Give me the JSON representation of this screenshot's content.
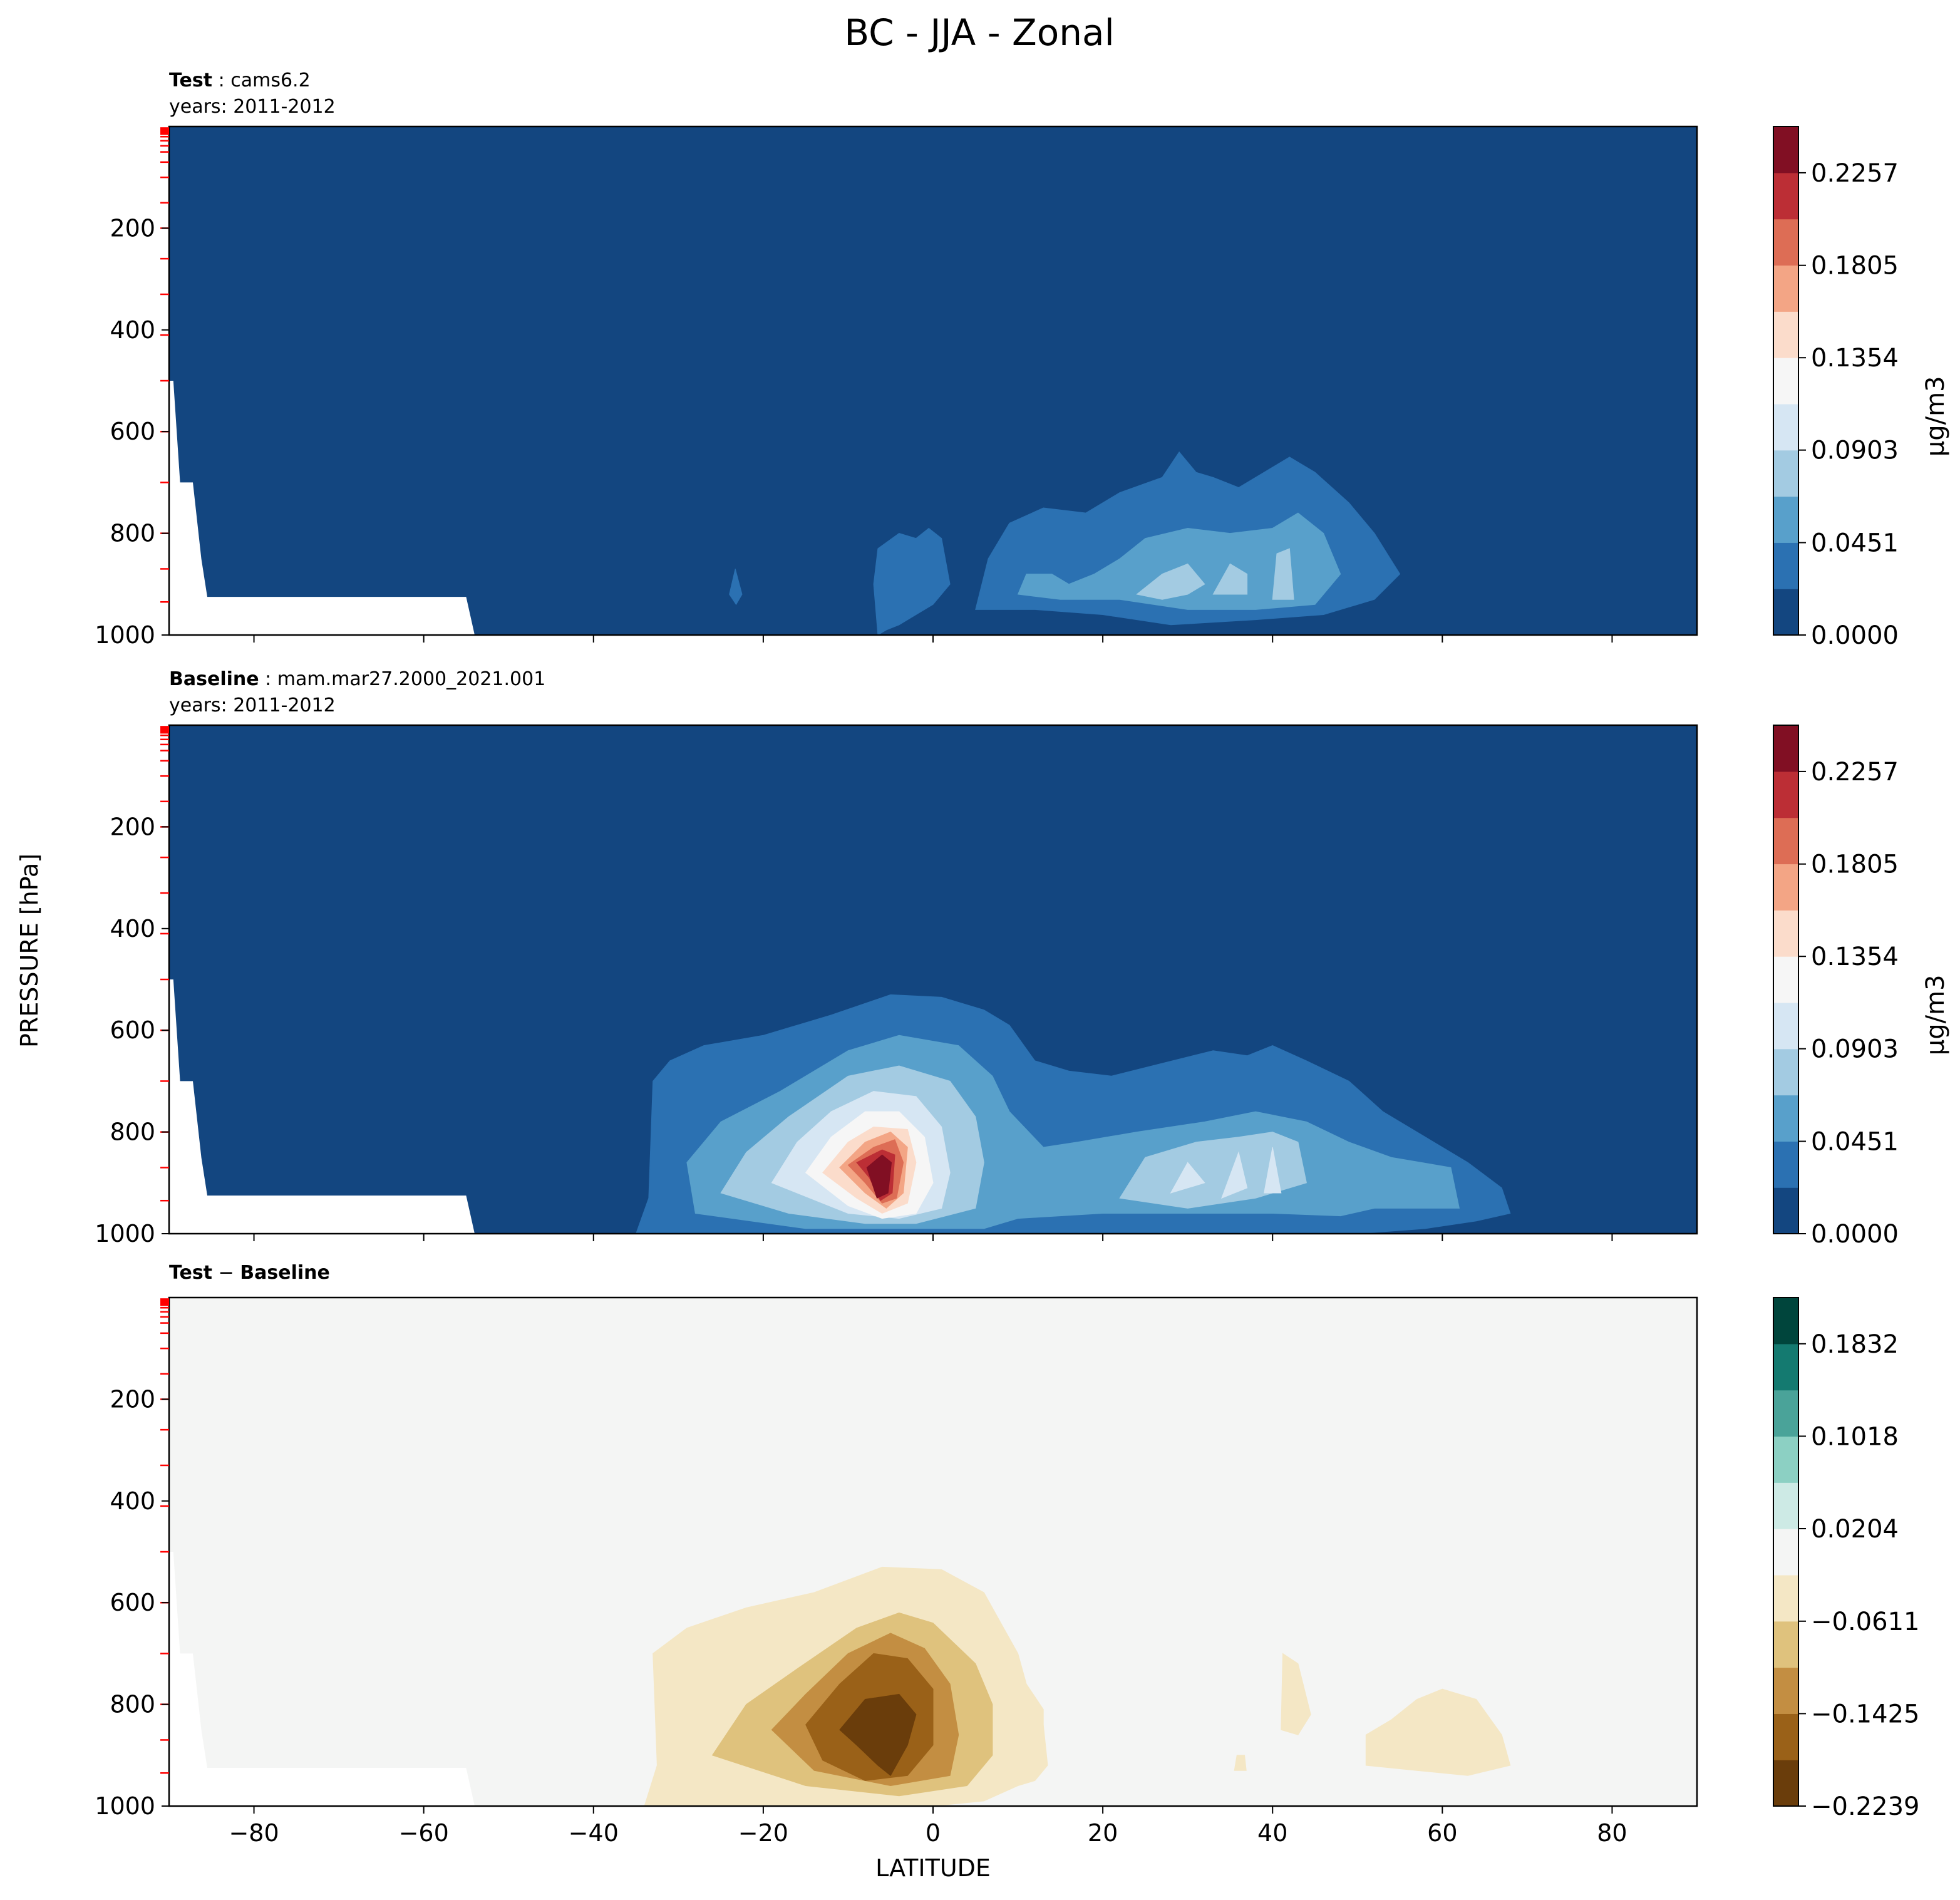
{
  "chart_data": {
    "type": "contour",
    "title": "BC - JJA - Zonal",
    "xlabel": "LATITUDE",
    "ylabel": "PRESSURE [hPa]",
    "xlim": [
      -90,
      90
    ],
    "ylim": [
      1000,
      0
    ],
    "x_ticks": [
      "−80",
      "−60",
      "−40",
      "−20",
      "0",
      "20",
      "40",
      "60",
      "80"
    ],
    "y_ticks": [
      "200",
      "400",
      "600",
      "800",
      "1000"
    ],
    "panels": [
      {
        "title_bold": "Test",
        "title_text": "cams6.2",
        "subtitle": "years: 2011-2012",
        "colorbar_label": "μg/m3",
        "colorbar_ticks": [
          "0.0000",
          "0.0451",
          "0.0903",
          "0.1354",
          "0.1805",
          "0.2257"
        ],
        "colorbar_range": [
          0.0,
          0.2483
        ],
        "colors": [
          "#134680",
          "#2b71b2",
          "#58a0cb",
          "#a3cbe2",
          "#d6e6f3",
          "#f6f6f6",
          "#fbdccb",
          "#f3a585",
          "#dd6d55",
          "#bc2e35",
          "#810f23"
        ],
        "features": [
          {
            "name": "nh-aerosol-plume",
            "lat_range": [
              2,
              52
            ],
            "top_hPa": 650,
            "max_ugm3": 0.1
          },
          {
            "name": "equatorial-blob",
            "lat_range": [
              -7,
              2
            ],
            "top_hPa": 780,
            "max_ugm3": 0.05
          },
          {
            "name": "sh-speck",
            "lat_range": [
              -24,
              -22
            ],
            "top_hPa": 880,
            "max_ugm3": 0.03
          }
        ]
      },
      {
        "title_bold": "Baseline",
        "title_text": "mam.mar27.2000_2021.001",
        "subtitle": "years: 2011-2012",
        "colorbar_label": "μg/m3",
        "colorbar_ticks": [
          "0.0000",
          "0.0451",
          "0.0903",
          "0.1354",
          "0.1805",
          "0.2257"
        ],
        "colorbar_range": [
          0.0,
          0.2483
        ],
        "colors": [
          "#134680",
          "#2b71b2",
          "#58a0cb",
          "#a3cbe2",
          "#d6e6f3",
          "#f6f6f6",
          "#fbdccb",
          "#f3a585",
          "#dd6d55",
          "#bc2e35",
          "#810f23"
        ],
        "features": [
          {
            "name": "tropical-biomass-burning-plume",
            "lat_range": [
              -35,
              15
            ],
            "top_hPa": 530,
            "peak_lat": -5,
            "peak_hPa": 880,
            "max_ugm3": 0.245
          },
          {
            "name": "nh-aerosol-plume",
            "lat_range": [
              10,
              68
            ],
            "top_hPa": 640,
            "max_ugm3": 0.12
          }
        ]
      },
      {
        "title_bold": "Test",
        "title_text": "Baseline",
        "title_operator": "−",
        "subtitle": "",
        "colorbar_label": "",
        "colorbar_ticks": [
          "−0.2239",
          "−0.1425",
          "−0.0611",
          "0.0204",
          "0.1018",
          "0.1832"
        ],
        "colorbar_range": [
          -0.2239,
          0.2239
        ],
        "colors": [
          "#6a3d0b",
          "#9a6118",
          "#c38e42",
          "#dfc27d",
          "#f4e7c5",
          "#f4f5f4",
          "#cdeae5",
          "#8cd0c3",
          "#4aa399",
          "#147a70",
          "#00453c"
        ],
        "features": [
          {
            "name": "tropical-deficit",
            "lat_range": [
              -32,
              13
            ],
            "top_hPa": 530,
            "peak_lat": -5,
            "peak_hPa": 860,
            "min_ugm3": -0.224
          },
          {
            "name": "nh-small-deficit",
            "lat_range": [
              51,
              68
            ],
            "top_hPa": 760,
            "min_ugm3": -0.06
          },
          {
            "name": "midlat-sliver",
            "lat_range": [
              41,
              44
            ],
            "top_hPa": 700,
            "min_ugm3": -0.06
          }
        ]
      }
    ]
  }
}
